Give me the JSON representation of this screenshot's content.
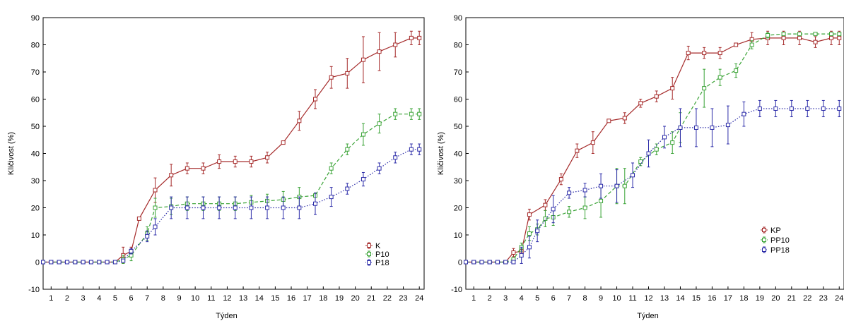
{
  "colors": {
    "K": "#a52a2a",
    "P10": "#3aa336",
    "P18": "#2b2ba8",
    "frame": "#000000"
  },
  "chart_data": [
    {
      "type": "line",
      "xlabel": "Týden",
      "ylabel": "Klíčivost (%)",
      "xlim": [
        0.5,
        24.3
      ],
      "ylim": [
        -10,
        90
      ],
      "yticks": [
        -10,
        0,
        10,
        20,
        30,
        40,
        50,
        60,
        70,
        80,
        90
      ],
      "xticks": [
        1,
        2,
        3,
        4,
        5,
        6,
        7,
        8,
        9,
        10,
        11,
        12,
        13,
        14,
        15,
        16,
        17,
        18,
        19,
        20,
        21,
        22,
        23,
        24
      ],
      "grid": false,
      "error_bars": true,
      "legend_position": "bottom-right",
      "series": [
        {
          "name": "K",
          "color": "#a52a2a",
          "dash": "solid",
          "x": [
            0.5,
            1,
            1.5,
            2,
            2.5,
            3,
            3.5,
            4,
            4.5,
            5,
            5.5,
            6,
            6.5,
            7.5,
            8.5,
            9.5,
            10.5,
            11.5,
            12.5,
            13.5,
            14.5,
            15.5,
            16.5,
            17.5,
            18.5,
            19.5,
            20.5,
            21.5,
            22.5,
            23.5,
            24
          ],
          "y": [
            0,
            0,
            0,
            0,
            0,
            0,
            0,
            0,
            0,
            0,
            2.5,
            4,
            16,
            26.5,
            32,
            34.5,
            34.5,
            37,
            37,
            37,
            38.5,
            44,
            52,
            60,
            68,
            69.5,
            74.5,
            77.5,
            80,
            82.5,
            82.5
          ],
          "err": [
            0,
            0,
            0,
            0,
            0,
            0,
            0,
            0,
            0,
            0,
            3,
            1.5,
            0.5,
            4.5,
            4,
            2,
            2,
            2.5,
            2,
            2,
            2,
            0.5,
            3.5,
            3.5,
            4,
            5.5,
            8.5,
            7,
            4.5,
            2.5,
            2.5
          ]
        },
        {
          "name": "P10",
          "color": "#3aa336",
          "dash": "dashed",
          "x": [
            0.5,
            1,
            1.5,
            2,
            2.5,
            3,
            3.5,
            4,
            4.5,
            5,
            5.5,
            6,
            7,
            7.5,
            8.5,
            9.5,
            10.5,
            11.5,
            12.5,
            13.5,
            14.5,
            15.5,
            16.5,
            17.5,
            18.5,
            19.5,
            20.5,
            21.5,
            22.5,
            23.5,
            24
          ],
          "y": [
            0,
            0,
            0,
            0,
            0,
            0,
            0,
            0,
            0,
            0,
            1,
            2.5,
            10.5,
            20,
            20.5,
            21.5,
            21.5,
            21.5,
            21.5,
            22,
            22.5,
            23,
            24,
            24.5,
            34.5,
            41.5,
            47,
            51,
            54.5,
            54.5,
            54.5
          ],
          "err": [
            0,
            0,
            0,
            0,
            0,
            0,
            0,
            0,
            0,
            0,
            1.5,
            2,
            2.5,
            3.5,
            3,
            2.5,
            2.5,
            2.5,
            2.5,
            2.5,
            2.5,
            3,
            3.5,
            0.5,
            2,
            2,
            4,
            3.5,
            2,
            2,
            2
          ]
        },
        {
          "name": "P18",
          "color": "#2b2ba8",
          "dash": "dotted",
          "x": [
            0.5,
            1,
            1.5,
            2,
            2.5,
            3,
            3.5,
            4,
            4.5,
            5,
            5.5,
            6,
            7,
            7.5,
            8.5,
            9.5,
            10.5,
            11.5,
            12.5,
            13.5,
            14.5,
            15.5,
            16.5,
            17.5,
            18.5,
            19.5,
            20.5,
            21.5,
            22.5,
            23.5,
            24
          ],
          "y": [
            0,
            0,
            0,
            0,
            0,
            0,
            0,
            0,
            0,
            0,
            0.5,
            4,
            9.5,
            13,
            20,
            20,
            20,
            20,
            20,
            20,
            20,
            20,
            20,
            21.5,
            24,
            27,
            30.5,
            34.5,
            38.5,
            41.5,
            41.5
          ],
          "err": [
            0,
            0,
            0,
            0,
            0,
            0,
            0,
            0,
            0,
            0,
            0.5,
            1,
            2,
            3,
            4,
            4,
            4,
            4,
            4,
            4,
            4,
            4,
            4,
            4,
            3.5,
            2,
            2.5,
            2,
            2,
            2,
            2
          ]
        }
      ]
    },
    {
      "type": "line",
      "xlabel": "Týden",
      "ylabel": "Klíčivost (%)",
      "xlim": [
        0.5,
        24.3
      ],
      "ylim": [
        -10,
        90
      ],
      "yticks": [
        -10,
        0,
        10,
        20,
        30,
        40,
        50,
        60,
        70,
        80,
        90
      ],
      "xticks": [
        1,
        2,
        3,
        4,
        5,
        6,
        7,
        8,
        9,
        10,
        11,
        12,
        13,
        14,
        15,
        16,
        17,
        18,
        19,
        20,
        21,
        22,
        23,
        24
      ],
      "grid": false,
      "error_bars": true,
      "legend_position": "bottom-right",
      "series": [
        {
          "name": "KP",
          "color": "#a52a2a",
          "dash": "solid",
          "x": [
            0.5,
            1,
            1.5,
            2,
            2.5,
            3,
            3.5,
            4,
            4.5,
            5.5,
            6.5,
            7.5,
            8.5,
            9.5,
            10.5,
            11.5,
            12.5,
            13.5,
            14.5,
            15.5,
            16.5,
            17.5,
            18.5,
            19.5,
            20.5,
            21.5,
            22.5,
            23.5,
            24
          ],
          "y": [
            0,
            0,
            0,
            0,
            0,
            0,
            3.5,
            4,
            17.5,
            21,
            30.5,
            41,
            44,
            52,
            53,
            58.5,
            61,
            64,
            77,
            77,
            77,
            80,
            82,
            82.5,
            82.5,
            82.5,
            81,
            82.5,
            82.5
          ],
          "err": [
            0,
            0,
            0,
            0,
            0,
            0,
            1.5,
            1.5,
            2,
            2,
            2,
            2.5,
            4,
            0.5,
            2,
            1.5,
            2,
            4,
            2.5,
            2,
            2,
            0.5,
            2.5,
            2.5,
            2.5,
            2.5,
            2,
            2.5,
            2.5
          ]
        },
        {
          "name": "PP10",
          "color": "#3aa336",
          "dash": "dashed",
          "x": [
            0.5,
            1,
            1.5,
            2,
            2.5,
            3,
            3.5,
            4,
            4.5,
            5,
            5.5,
            6,
            7,
            8,
            9,
            10,
            10.5,
            11.5,
            12.5,
            13.5,
            14,
            15.5,
            16.5,
            17.5,
            18.5,
            19.5,
            20.5,
            21.5,
            22.5,
            23.5,
            24
          ],
          "y": [
            0,
            0,
            0,
            0,
            0,
            0,
            1,
            5.5,
            10.5,
            12,
            16,
            16.5,
            18.5,
            20,
            22.5,
            28,
            28,
            37,
            41.5,
            44,
            49.5,
            64,
            68,
            70.5,
            80,
            83.5,
            84,
            84,
            84,
            84,
            84
          ],
          "err": [
            0,
            0,
            0,
            0,
            0,
            0,
            0.5,
            1.5,
            2.5,
            2,
            3,
            3,
            2,
            4,
            6,
            6.5,
            6.5,
            1.5,
            2,
            4,
            5.5,
            7,
            3,
            2.5,
            1.5,
            1,
            0.5,
            0.5,
            0.5,
            0.5,
            0.5
          ]
        },
        {
          "name": "PP18",
          "color": "#2b2ba8",
          "dash": "dotted",
          "x": [
            0.5,
            1,
            1.5,
            2,
            2.5,
            3,
            3.5,
            4,
            4.5,
            5,
            6,
            7,
            8,
            9,
            10,
            11,
            12,
            13,
            14,
            15,
            16,
            17,
            18,
            19,
            20,
            21,
            22,
            23,
            24
          ],
          "y": [
            0,
            0,
            0,
            0,
            0,
            0,
            0,
            2.5,
            5.5,
            11.5,
            19.5,
            25.5,
            26.5,
            28,
            28,
            32,
            40,
            46,
            49.5,
            49.5,
            49.5,
            50.5,
            54.5,
            56.5,
            56.5,
            56.5,
            56.5,
            56.5,
            56.5
          ],
          "err": [
            0,
            0,
            0,
            0,
            0,
            0,
            0,
            3,
            4,
            4,
            5,
            2,
            2.5,
            4.5,
            6,
            4.5,
            5,
            4,
            7,
            7,
            7,
            7,
            4.5,
            3,
            3,
            3,
            3,
            3,
            3
          ]
        }
      ]
    }
  ]
}
